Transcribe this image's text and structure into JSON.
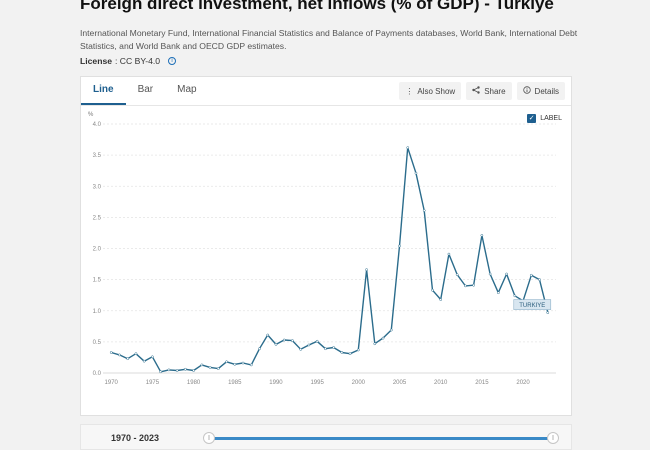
{
  "header": {
    "title": "Foreign direct investment, net inflows (% of GDP) - Turkiye",
    "source": "International Monetary Fund, International Financial Statistics and Balance of Payments databases, World Bank, International Debt Statistics, and World Bank and OECD GDP estimates.",
    "license_label": "License",
    "license_value": ": CC BY-4.0",
    "info_glyph": "i"
  },
  "tabs": [
    {
      "label": "Line",
      "active": true
    },
    {
      "label": "Bar",
      "active": false
    },
    {
      "label": "Map",
      "active": false
    }
  ],
  "toolbar": {
    "also_show": "Also Show",
    "share": "Share",
    "details": "Details"
  },
  "label_toggle": {
    "text": "LABEL",
    "checked": true,
    "check_glyph": "✓"
  },
  "range": {
    "label": "1970 - 2023",
    "start_glyph": "||",
    "end_glyph": "||"
  },
  "colors": {
    "line": "#2b6c8c",
    "accent": "#1e5f8f",
    "slider": "#3a8ac7"
  },
  "chart_data": {
    "type": "line",
    "ylabel": "%",
    "ylim": [
      0,
      4
    ],
    "yticks": [
      "0.0",
      "0.5",
      "1.0",
      "1.5",
      "2.0",
      "2.5",
      "3.0",
      "3.5",
      "4.0"
    ],
    "xticks": [
      "1970",
      "1975",
      "1980",
      "1985",
      "1990",
      "1995",
      "2000",
      "2005",
      "2010",
      "2015",
      "2020"
    ],
    "xlim": [
      1969,
      2024
    ],
    "grid": true,
    "series": [
      {
        "name": "TURKIYE",
        "x": [
          1970,
          1971,
          1972,
          1973,
          1974,
          1975,
          1976,
          1977,
          1978,
          1979,
          1980,
          1981,
          1982,
          1983,
          1984,
          1985,
          1986,
          1987,
          1988,
          1989,
          1990,
          1991,
          1992,
          1993,
          1994,
          1995,
          1996,
          1997,
          1998,
          1999,
          2000,
          2001,
          2002,
          2003,
          2004,
          2005,
          2006,
          2007,
          2008,
          2009,
          2010,
          2011,
          2012,
          2013,
          2014,
          2015,
          2016,
          2017,
          2018,
          2019,
          2020,
          2021,
          2022,
          2023
        ],
        "values": [
          0.33,
          0.29,
          0.23,
          0.31,
          0.19,
          0.26,
          0.02,
          0.05,
          0.04,
          0.06,
          0.04,
          0.13,
          0.09,
          0.07,
          0.18,
          0.14,
          0.16,
          0.13,
          0.39,
          0.61,
          0.46,
          0.53,
          0.52,
          0.38,
          0.45,
          0.51,
          0.39,
          0.41,
          0.33,
          0.31,
          0.37,
          1.66,
          0.47,
          0.56,
          0.69,
          2.04,
          3.62,
          3.21,
          2.61,
          1.33,
          1.18,
          1.91,
          1.58,
          1.4,
          1.41,
          2.21,
          1.59,
          1.29,
          1.59,
          1.24,
          1.16,
          1.57,
          1.5,
          0.97
        ]
      }
    ]
  }
}
